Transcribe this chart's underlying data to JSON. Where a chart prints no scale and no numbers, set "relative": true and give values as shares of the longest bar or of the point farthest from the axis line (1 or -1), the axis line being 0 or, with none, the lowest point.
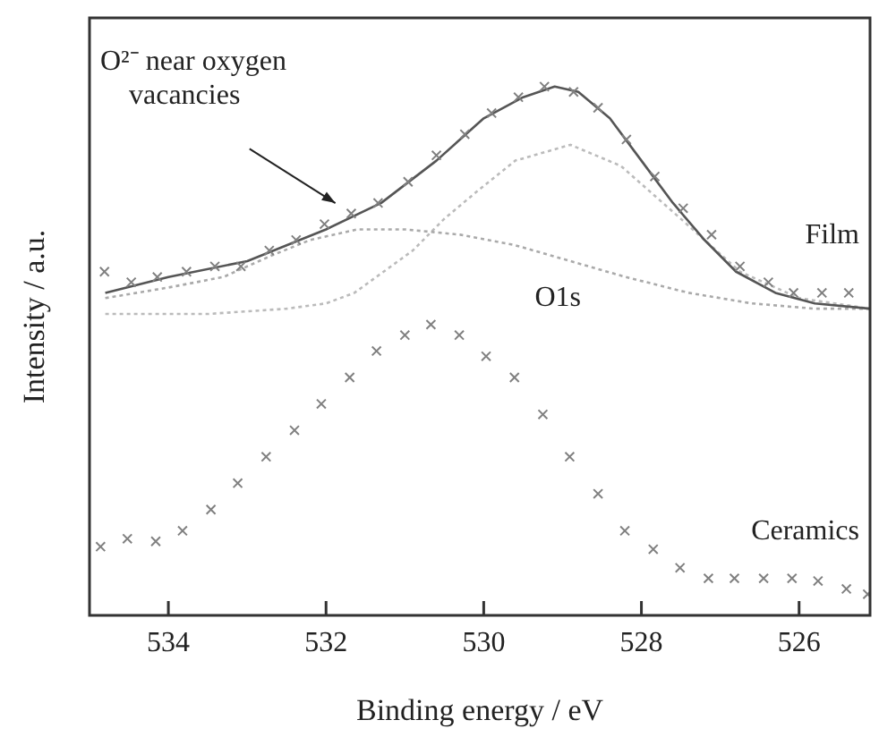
{
  "chart_data": {
    "type": "scatter",
    "relative": true,
    "xlabel": "Binding energy / eV",
    "ylabel": "Intensity / a.u.",
    "xlim": [
      535,
      525.1
    ],
    "xticks": [
      534,
      532,
      530,
      528,
      526
    ],
    "grid": false,
    "legend": false,
    "marker": "cross",
    "annotations": [
      "O²⁻ near oxygen vacancies",
      "O1s"
    ],
    "series": [
      {
        "name": "Film",
        "color": "#808080",
        "x": [
          534.81,
          534.47,
          534.14,
          533.77,
          533.41,
          533.08,
          532.72,
          532.38,
          532.02,
          531.68,
          531.34,
          530.96,
          530.6,
          530.24,
          529.9,
          529.56,
          529.23,
          528.86,
          528.55,
          528.19,
          527.83,
          527.47,
          527.11,
          526.75,
          526.39,
          526.07,
          525.71,
          525.37
        ],
        "values": [
          0.65,
          0.63,
          0.64,
          0.65,
          0.66,
          0.66,
          0.69,
          0.71,
          0.74,
          0.76,
          0.78,
          0.82,
          0.87,
          0.91,
          0.95,
          0.98,
          1.0,
          0.99,
          0.96,
          0.9,
          0.83,
          0.77,
          0.72,
          0.66,
          0.63,
          0.61,
          0.61,
          0.61
        ]
      },
      {
        "type": "line",
        "marker": "none",
        "color": "#555555",
        "line_style": "solid",
        "x": [
          534.8,
          534.0,
          533.0,
          532.0,
          531.3,
          530.6,
          530.0,
          529.5,
          529.1,
          528.8,
          528.4,
          528.0,
          527.6,
          527.2,
          526.8,
          526.3,
          525.8,
          525.1
        ],
        "values": [
          0.61,
          0.64,
          0.67,
          0.73,
          0.78,
          0.86,
          0.94,
          0.98,
          1.0,
          0.99,
          0.94,
          0.86,
          0.78,
          0.71,
          0.65,
          0.61,
          0.59,
          0.58
        ]
      },
      {
        "type": "line",
        "marker": "none",
        "color": "#aaaaaa",
        "line_style": "dotted",
        "x": [
          534.8,
          534.0,
          533.3,
          532.7,
          532.2,
          531.6,
          531.0,
          530.3,
          529.6,
          528.9,
          528.2,
          527.4,
          526.6,
          525.8,
          525.1
        ],
        "values": [
          0.6,
          0.62,
          0.64,
          0.68,
          0.71,
          0.73,
          0.73,
          0.72,
          0.7,
          0.67,
          0.64,
          0.61,
          0.59,
          0.58,
          0.58
        ]
      },
      {
        "type": "line",
        "marker": "none",
        "color": "#bbbbbb",
        "line_style": "dotted",
        "x": [
          534.8,
          533.5,
          532.5,
          532.0,
          531.64,
          530.9,
          530.5,
          530.1,
          529.6,
          528.9,
          528.26,
          527.5,
          526.75,
          526.0,
          525.1
        ],
        "values": [
          0.57,
          0.57,
          0.58,
          0.59,
          0.61,
          0.69,
          0.75,
          0.8,
          0.86,
          0.89,
          0.85,
          0.75,
          0.65,
          0.6,
          0.58
        ]
      },
      {
        "name": "Ceramics",
        "color": "#808080",
        "x": [
          534.86,
          534.52,
          534.16,
          533.82,
          533.46,
          533.12,
          532.76,
          532.4,
          532.06,
          531.7,
          531.36,
          531.0,
          530.67,
          530.31,
          529.97,
          529.61,
          529.25,
          528.91,
          528.55,
          528.21,
          527.85,
          527.51,
          527.15,
          526.82,
          526.45,
          526.09,
          525.76,
          525.4,
          525.13
        ],
        "values": [
          0.13,
          0.145,
          0.14,
          0.16,
          0.2,
          0.25,
          0.3,
          0.35,
          0.4,
          0.45,
          0.5,
          0.53,
          0.55,
          0.53,
          0.49,
          0.45,
          0.38,
          0.3,
          0.23,
          0.16,
          0.125,
          0.09,
          0.07,
          0.07,
          0.07,
          0.07,
          0.065,
          0.05,
          0.04
        ]
      }
    ]
  }
}
